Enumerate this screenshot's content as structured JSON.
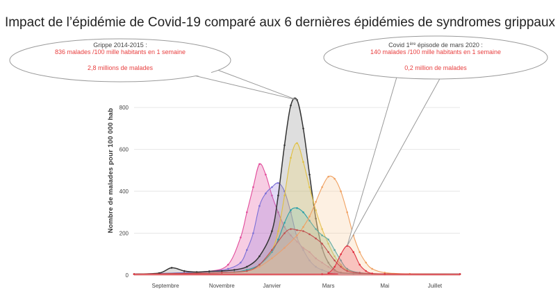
{
  "chart_data": {
    "type": "area",
    "title": "Impact de l’épidémie de Covid-19 comparé aux 6 dernières épidémies de syndromes grippaux",
    "ylabel": "Nombre de malades pour 100 000 hab",
    "xlabel": "",
    "ylim": [
      0,
      850
    ],
    "yticks": [
      0,
      200,
      400,
      600,
      800
    ],
    "x_range": [
      0,
      52
    ],
    "x_ticks": [
      {
        "week": 5,
        "label": "Septembre"
      },
      {
        "week": 14,
        "label": "Novembre"
      },
      {
        "week": 22,
        "label": "Janvier"
      },
      {
        "week": 31,
        "label": "Mars"
      },
      {
        "week": 40,
        "label": "Mai"
      },
      {
        "week": 48,
        "label": "Juillet"
      }
    ],
    "grid": true,
    "series": [
      {
        "color": "#e14b9a",
        "fill": "#e14b9a",
        "x": [
          0,
          4,
          8,
          12,
          15,
          17,
          18,
          19,
          20,
          21,
          22,
          23,
          24,
          25,
          26,
          27,
          28,
          29,
          30,
          31,
          32,
          33,
          36,
          40,
          44,
          52
        ],
        "y": [
          5,
          8,
          12,
          18,
          50,
          180,
          300,
          420,
          530,
          480,
          380,
          300,
          230,
          190,
          160,
          130,
          110,
          80,
          60,
          40,
          20,
          12,
          8,
          5,
          5,
          5
        ]
      },
      {
        "color": "#7b6fd6",
        "fill": "#9b7fe0",
        "x": [
          0,
          4,
          8,
          12,
          15,
          17,
          18,
          19,
          20,
          21,
          22,
          23,
          24,
          25,
          26,
          27,
          28,
          29,
          30,
          31,
          32,
          35,
          40,
          52
        ],
        "y": [
          5,
          8,
          12,
          18,
          30,
          60,
          120,
          200,
          330,
          390,
          420,
          440,
          400,
          300,
          180,
          120,
          70,
          40,
          25,
          15,
          10,
          6,
          5,
          5
        ]
      },
      {
        "color": "#333333",
        "fill": "#8a8a8a",
        "x": [
          0,
          4,
          6,
          8,
          10,
          12,
          14,
          16,
          18,
          20,
          22,
          23,
          24,
          25,
          26,
          27,
          28,
          29,
          30,
          31,
          32,
          33,
          35,
          40,
          52
        ],
        "y": [
          5,
          10,
          35,
          20,
          15,
          18,
          20,
          25,
          40,
          90,
          210,
          380,
          620,
          810,
          836,
          700,
          480,
          270,
          130,
          60,
          25,
          12,
          8,
          5,
          5
        ]
      },
      {
        "color": "#e0c040",
        "fill": "#f0d870",
        "x": [
          0,
          8,
          12,
          16,
          18,
          20,
          22,
          23,
          24,
          25,
          26,
          27,
          28,
          29,
          30,
          31,
          32,
          33,
          34,
          36,
          40,
          52
        ],
        "y": [
          5,
          8,
          10,
          15,
          25,
          50,
          120,
          210,
          380,
          560,
          630,
          540,
          420,
          310,
          220,
          150,
          90,
          50,
          25,
          12,
          6,
          5
        ]
      },
      {
        "color": "#2aa0a8",
        "fill": "#7fc7b0",
        "x": [
          0,
          8,
          12,
          16,
          18,
          20,
          22,
          23,
          24,
          25,
          26,
          27,
          28,
          29,
          30,
          31,
          32,
          33,
          34,
          36,
          40,
          52
        ],
        "y": [
          5,
          8,
          10,
          15,
          25,
          50,
          110,
          170,
          250,
          310,
          320,
          300,
          260,
          220,
          190,
          170,
          120,
          70,
          30,
          12,
          6,
          5
        ]
      },
      {
        "color": "#f0a060",
        "fill": "#f8c898",
        "x": [
          0,
          8,
          14,
          18,
          20,
          22,
          24,
          26,
          27,
          28,
          29,
          30,
          31,
          32,
          33,
          34,
          35,
          36,
          37,
          38,
          40,
          44,
          52
        ],
        "y": [
          5,
          8,
          12,
          20,
          40,
          80,
          130,
          190,
          230,
          280,
          350,
          420,
          470,
          460,
          400,
          300,
          190,
          110,
          60,
          30,
          12,
          6,
          5
        ]
      },
      {
        "color": "#c05050",
        "fill": "#d8a0a0",
        "x": [
          0,
          8,
          14,
          18,
          20,
          22,
          24,
          25,
          26,
          27,
          28,
          29,
          30,
          31,
          32,
          33,
          34,
          36,
          40,
          52
        ],
        "y": [
          5,
          8,
          12,
          20,
          50,
          120,
          200,
          220,
          215,
          210,
          195,
          175,
          150,
          110,
          70,
          40,
          20,
          10,
          6,
          5
        ]
      },
      {
        "color": "#e03040",
        "fill": "#ee5060",
        "x": [
          0,
          30,
          31,
          32,
          33,
          34,
          35,
          36,
          37,
          38,
          40,
          52
        ],
        "y": [
          5,
          5,
          10,
          40,
          100,
          140,
          110,
          50,
          20,
          8,
          5,
          5
        ]
      }
    ],
    "annotations": [
      {
        "line1": "Grippe  2014-2015 :",
        "line2": "836 malades /100 mille habitants en 1 semaine",
        "line3": "2,8 millions de malades",
        "target_week": 26,
        "target_value": 836
      },
      {
        "line1_pre": "Covid 1",
        "line1_sup": "ère",
        "line1_post": " épisode de mars 2020 :",
        "line2": "140 malades /100 mille habitants en 1 semaine",
        "line3": "0,2 million de malades",
        "target_week": 34,
        "target_value": 140
      }
    ]
  },
  "colors": {
    "title": "#222222",
    "annotation_title": "#444444",
    "annotation_highlight": "#e84040",
    "gridline": "#e6e6e6",
    "axis_text": "#444444"
  }
}
